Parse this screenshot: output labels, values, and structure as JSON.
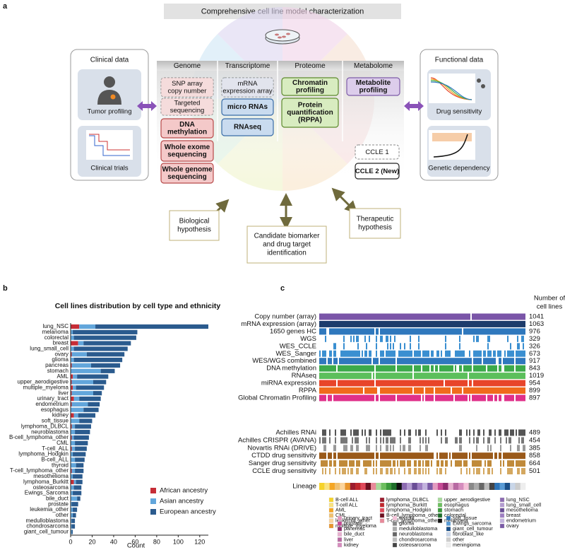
{
  "panel_labels": [
    "a",
    "b",
    "c"
  ],
  "diagram": {
    "title": "Comprehensive cell line model characterization",
    "clinical": {
      "title": "Clinical data",
      "items": [
        "Tumor profiling",
        "Clinical trials"
      ]
    },
    "functional": {
      "title": "Functional data",
      "items": [
        "Drug sensitivity",
        "Genetic dependency"
      ]
    },
    "columns": [
      {
        "header": "Genome",
        "boxes": [
          [
            "SNP array",
            "copy number"
          ],
          [
            "Targeted",
            "sequencing"
          ],
          [
            "DNA",
            "methylation"
          ],
          [
            "Whole exome",
            "sequencing"
          ],
          [
            "Whole genome",
            "sequencing"
          ]
        ]
      },
      {
        "header": "Transcriptome",
        "boxes": [
          [
            "mRNA",
            "expression array"
          ],
          [
            "micro RNAs"
          ],
          [
            "RNAseq"
          ]
        ]
      },
      {
        "header": "Proteome",
        "boxes": [
          [
            "Chromatin",
            "profiling"
          ],
          [
            "Protein",
            "quantification",
            "(RPPA)"
          ]
        ]
      },
      {
        "header": "Metabolome",
        "boxes": [
          [
            "Metabolite",
            "profiling"
          ]
        ]
      }
    ],
    "legend": [
      "CCLE 1",
      "CCLE 2 (New)"
    ],
    "outcomes": [
      [
        "Biological",
        "hypothesis"
      ],
      [
        "Candidate biomarker",
        "and drug target",
        "identification"
      ],
      [
        "Therapeutic",
        "hypothesis"
      ]
    ]
  },
  "chart_data": [
    {
      "type": "bar",
      "orientation": "horizontal",
      "stacked": true,
      "title": "Cell lines distribution by cell type and ethnicity",
      "x_label": "Count",
      "categories": [
        "lung_NSC",
        "melanoma",
        "colorectal",
        "breast",
        "lung_small_cell",
        "ovary",
        "glioma",
        "pancreas",
        "stomach",
        "AML",
        "upper_aerodigestive",
        "multiple_myeloma",
        "liver",
        "urinary_tract",
        "endometrium",
        "esophagus",
        "kidney",
        "soft_tissue",
        "lymphoma_DLBCL",
        "neuroblastoma",
        "B-cell_lymphoma_other",
        "CML",
        "T-cell_ALL",
        "lymphoma_Hodgkin",
        "B-cell_ALL",
        "thyroid",
        "T-cell_lymphoma_other",
        "mesothelioma",
        "lymphoma_Burkitt",
        "osteosarcoma",
        "Ewings_Sarcoma",
        "bile_duct",
        "prostate",
        "leukemia_other",
        "other",
        "medulloblastoma",
        "chondrosarcoma",
        "giant_cell_tumour"
      ],
      "series": [
        {
          "name": "African ancestry",
          "color": "#c62d36",
          "values": [
            8,
            0,
            0,
            7,
            0,
            1,
            0,
            1,
            0,
            2,
            1,
            2,
            1,
            3,
            1,
            0,
            3,
            0,
            1,
            0,
            1,
            0,
            1,
            0,
            0,
            0,
            1,
            0,
            3,
            0,
            0,
            0,
            0,
            0,
            0,
            0,
            0,
            0
          ]
        },
        {
          "name": "Asian ancestry",
          "color": "#62a6db",
          "values": [
            15,
            2,
            3,
            5,
            3,
            14,
            3,
            18,
            28,
            4,
            20,
            3,
            20,
            5,
            15,
            12,
            4,
            8,
            3,
            4,
            2,
            4,
            3,
            2,
            4,
            5,
            3,
            2,
            2,
            3,
            2,
            6,
            1,
            2,
            2,
            1,
            1,
            1
          ]
        },
        {
          "name": "European ancestry",
          "color": "#2b5b8e",
          "values": [
            105,
            60,
            58,
            44,
            50,
            35,
            45,
            27,
            13,
            29,
            12,
            26,
            8,
            20,
            11,
            14,
            16,
            12,
            15,
            14,
            14,
            12,
            11,
            12,
            9,
            7,
            8,
            9,
            6,
            7,
            8,
            3,
            6,
            4,
            3,
            3,
            3,
            1
          ]
        }
      ],
      "xlim": [
        0,
        128
      ],
      "xticks": [
        0,
        20,
        40,
        60,
        80,
        100,
        120
      ],
      "legend": "lower right"
    },
    {
      "type": "heatmap",
      "header": [
        "Number of",
        "cell lines"
      ],
      "rows": [
        {
          "name": "Copy number (array)",
          "label_color": "#000000",
          "color": "#7a55a8",
          "count": 1041
        },
        {
          "name": "mRNA expression (array)",
          "label_color": "#000000",
          "color": "#1d3c6c",
          "count": 1063
        },
        {
          "name": "1650 genes HC",
          "label_color": "#000000",
          "color": "#2f78bd",
          "count": 976
        },
        {
          "name": "WGS",
          "label_color": "#c62d36",
          "color": "#3a8fd1",
          "count": 329
        },
        {
          "name": "WES_CCLE",
          "label_color": "#c62d36",
          "color": "#3a8fd1",
          "count": 326
        },
        {
          "name": "WES_Sanger",
          "label_color": "#000000",
          "color": "#3a8fd1",
          "count": 673
        },
        {
          "name": "WES/WGS combined",
          "label_color": "#c62d36",
          "color": "#2f78bd",
          "count": 917
        },
        {
          "name": "DNA methylation",
          "label_color": "#c62d36",
          "color": "#3caa4a",
          "count": 843
        },
        {
          "name": "RNAseq",
          "label_color": "#c62d36",
          "color": "#5cbf5c",
          "count": 1019
        },
        {
          "name": "miRNA expression",
          "label_color": "#c62d36",
          "color": "#e8452a",
          "count": 954
        },
        {
          "name": "RPPA",
          "label_color": "#c62d36",
          "color": "#f06a1c",
          "count": 899
        },
        {
          "name": "Global Chromatin Profiling",
          "label_color": "#c62d36",
          "color": "#e0308a",
          "count": 897
        },
        {
          "name": "Achilles RNAi",
          "label_color": "#2b3a9c",
          "color": "#555555",
          "count": 489
        },
        {
          "name": "Achilles CRISPR (AVANA)",
          "label_color": "#2b3a9c",
          "color": "#777777",
          "count": 454
        },
        {
          "name": "Novartis RNAi (DRIVE)",
          "label_color": "#2b3a9c",
          "color": "#999999",
          "count": 385
        },
        {
          "name": "CTDD drug sensitivity",
          "label_color": "#2b3a9c",
          "color": "#9a5a1a",
          "count": 858
        },
        {
          "name": "Sanger drug sensitivity",
          "label_color": "#2b3a9c",
          "color": "#c08a3a",
          "count": 664
        },
        {
          "name": "CCLE drug sensitivity",
          "label_color": "#2b3a9c",
          "color": "#d4a860",
          "count": 501
        }
      ],
      "lineage": {
        "label": "Lineage",
        "legend_columns": [
          [
            {
              "name": "B-cell ALL",
              "color": "#f6d32a"
            },
            {
              "name": "T-cell ALL",
              "color": "#f9e27e"
            },
            {
              "name": "AML",
              "color": "#f5a623"
            },
            {
              "name": "CML",
              "color": "#f0c070"
            },
            {
              "name": "leukemia_other",
              "color": "#fbd49c"
            },
            {
              "name": "multiple_myeloma",
              "color": "#e8952c"
            }
          ],
          [
            {
              "name": "lymphoma_DLBCL",
              "color": "#9b1c2e"
            },
            {
              "name": "lymphoma_Burkitt",
              "color": "#c0272d"
            },
            {
              "name": "lymphoma_Hodgkin",
              "color": "#e0485a"
            },
            {
              "name": "B-cell_lymphoma_other",
              "color": "#6d1020"
            },
            {
              "name": "T-cell_lymphoma_other",
              "color": "#e88a9a"
            }
          ],
          [
            {
              "name": "upper_aerodigestive",
              "color": "#a6d99a"
            },
            {
              "name": "esophagus",
              "color": "#6dbf5f"
            },
            {
              "name": "stomach",
              "color": "#3c9a3c"
            },
            {
              "name": "colorectal",
              "color": "#1f6e2a"
            },
            {
              "name": "melanoma",
              "color": "#111111"
            }
          ],
          [
            {
              "name": "lung_NSC",
              "color": "#8c6bb1"
            },
            {
              "name": "lung_small_cell",
              "color": "#b39bd0"
            },
            {
              "name": "mesothelioma",
              "color": "#6a4e96"
            },
            {
              "name": "breast",
              "color": "#9e7fc2"
            },
            {
              "name": "endometrium",
              "color": "#c3b3de"
            },
            {
              "name": "ovary",
              "color": "#7a5aa6"
            }
          ],
          [
            {
              "name": "urinary_tract",
              "color": "#e39ac0"
            },
            {
              "name": "prostate",
              "color": "#c54a94"
            },
            {
              "name": "pancreas",
              "color": "#8e2d6e"
            },
            {
              "name": "bile_duct",
              "color": "#e6b0cf"
            },
            {
              "name": "liver",
              "color": "#b76aa2"
            },
            {
              "name": "kidney",
              "color": "#d58cbd"
            }
          ],
          [
            {
              "name": "thyroid",
              "color": "#f4c2d8"
            },
            {
              "name": "glioma",
              "color": "#888888"
            },
            {
              "name": "medulloblastoma",
              "color": "#aaaaaa"
            },
            {
              "name": "neuroblastoma",
              "color": "#666666"
            },
            {
              "name": "chondrosarcoma",
              "color": "#bbbbbb"
            },
            {
              "name": "osteosarcoma",
              "color": "#444444"
            }
          ],
          [
            {
              "name": "soft_tissue",
              "color": "#2d74b8"
            },
            {
              "name": "Ewings_sarcoma",
              "color": "#5a9bd5"
            },
            {
              "name": "giant_cell_tumour",
              "color": "#1b4f87"
            },
            {
              "name": "fibroblast_like",
              "color": "#c9d6e8"
            },
            {
              "name": "other",
              "color": "#cccccc"
            },
            {
              "name": "meningioma",
              "color": "#eeeeee"
            }
          ]
        ]
      }
    }
  ]
}
